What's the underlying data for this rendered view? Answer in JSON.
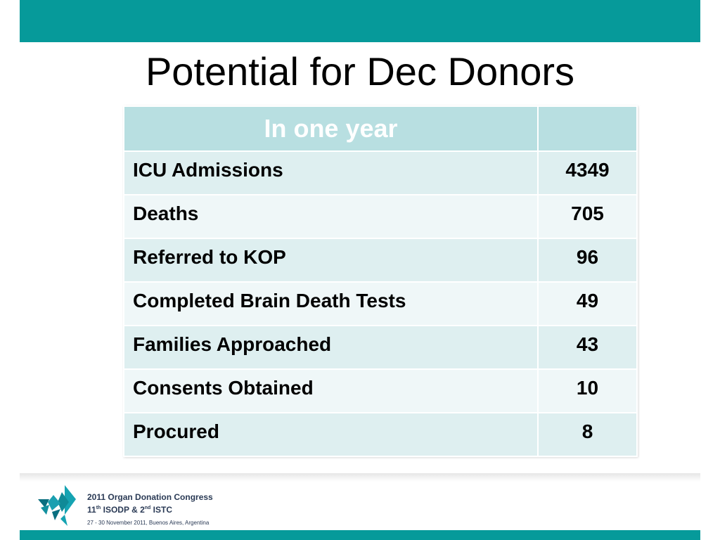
{
  "slide": {
    "title": "Potential for Dec Donors"
  },
  "table": {
    "header": "In one year",
    "header_value": "",
    "rows": [
      {
        "label": "ICU Admissions",
        "value": "4349"
      },
      {
        "label": "Deaths",
        "value": "705"
      },
      {
        "label": "Referred to KOP",
        "value": "96"
      },
      {
        "label": "Completed Brain Death Tests",
        "value": "49"
      },
      {
        "label": "Families Approached",
        "value": "43"
      },
      {
        "label": "Consents Obtained",
        "value": "10"
      },
      {
        "label": "Procured",
        "value": "8"
      }
    ]
  },
  "footer": {
    "line1": "2011 Organ Donation Congress",
    "line2_a": "11",
    "line2_sup1": "th",
    "line2_b": " ISODP & 2",
    "line2_sup2": "nd",
    "line2_c": " ISTC",
    "line3": "27 - 30 November 2011, Buenos Aires, Argentina"
  },
  "colors": {
    "band": "#069a9a",
    "header_bg": "#b8dfe1",
    "row_odd": "#deeff0",
    "row_even": "#eff7f8"
  },
  "icons": {
    "logo": "congress-logo-icon"
  }
}
